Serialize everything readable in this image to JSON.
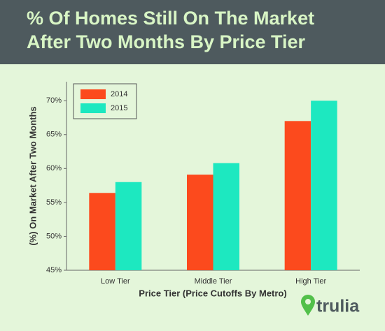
{
  "chart_data": {
    "type": "bar",
    "title": "% Of Homes Still On The Market After Two Months By Price Tier",
    "title_lines": [
      "% Of Homes Still On The Market",
      "After Two Months By Price Tier"
    ],
    "categories": [
      "Low Tier",
      "Middle Tier",
      "High Tier"
    ],
    "series": [
      {
        "name": "2014",
        "color": "#fc4a1d",
        "values": [
          56.4,
          59.1,
          67.0
        ]
      },
      {
        "name": "2015",
        "color": "#1de8c0",
        "values": [
          58.0,
          60.8,
          70.0
        ]
      }
    ],
    "x_label": "Price Tier (Price Cutoffs By Metro)",
    "y_label": "(%) On Market After Two Months",
    "ylim": [
      45,
      72.8
    ],
    "yticks": [
      {
        "value": 45,
        "label": "45%"
      },
      {
        "value": 50,
        "label": "50%"
      },
      {
        "value": 55,
        "label": "55%"
      },
      {
        "value": 60,
        "label": "60%"
      },
      {
        "value": 65,
        "label": "65%"
      },
      {
        "value": 70,
        "label": "70%"
      }
    ],
    "legend": "top-left",
    "logo": "trulia"
  }
}
